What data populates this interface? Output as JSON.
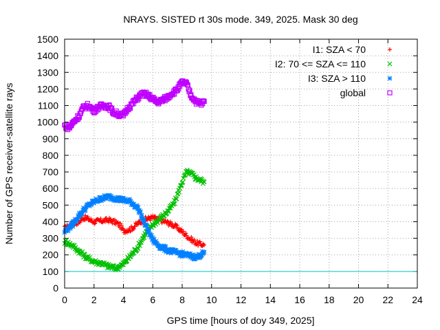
{
  "chart_data": {
    "type": "scatter",
    "title": "NRAYS. SISTED rt 30s mode. 349, 2025. Mask 30 deg",
    "xlabel": "GPS time [hours of doy 349, 2025]",
    "ylabel": "Number of GPS receiver-satellite rays",
    "xlim": [
      0,
      24
    ],
    "ylim": [
      0,
      1500
    ],
    "x_ticks": [
      "0",
      "2",
      "4",
      "6",
      "8",
      "10",
      "12",
      "14",
      "16",
      "18",
      "20",
      "22",
      "24"
    ],
    "y_ticks": [
      "0",
      "100",
      "200",
      "300",
      "400",
      "500",
      "600",
      "700",
      "800",
      "900",
      "1000",
      "1100",
      "1200",
      "1300",
      "1400",
      "1500"
    ],
    "grid": true,
    "legend_position": "top-right",
    "threshold_line": {
      "y": 100,
      "color": "#00c8c8"
    },
    "series": [
      {
        "name": "I1: SZA < 70",
        "marker": "plus",
        "color": "#ff0000",
        "x": [
          0,
          0.5,
          1,
          1.3,
          1.5,
          2,
          2.5,
          3,
          3.5,
          3.8,
          4,
          4.5,
          5,
          5.5,
          6,
          6.5,
          7,
          7.5,
          8,
          8.5,
          9,
          9.5
        ],
        "y": [
          360,
          385,
          400,
          425,
          420,
          400,
          405,
          410,
          395,
          375,
          345,
          355,
          390,
          415,
          425,
          410,
          395,
          375,
          340,
          300,
          270,
          260
        ]
      },
      {
        "name": "I2: 70 <= SZA <= 110",
        "marker": "cross",
        "color": "#00c000",
        "x": [
          0,
          0.5,
          1,
          1.5,
          2,
          2.5,
          3,
          3.5,
          4,
          4.5,
          5,
          5.5,
          6,
          6.5,
          7,
          7.5,
          8,
          8.3,
          8.6,
          9,
          9.5
        ],
        "y": [
          280,
          260,
          220,
          185,
          160,
          150,
          130,
          120,
          145,
          195,
          250,
          330,
          380,
          420,
          460,
          520,
          640,
          700,
          690,
          660,
          640
        ]
      },
      {
        "name": "I3: SZA > 110",
        "marker": "star",
        "color": "#0080ff",
        "x": [
          0,
          0.5,
          1,
          1.5,
          2,
          2.5,
          3,
          3.5,
          4,
          4.5,
          5,
          5.5,
          6,
          6.5,
          7,
          7.5,
          8,
          8.5,
          9,
          9.5
        ],
        "y": [
          340,
          380,
          440,
          490,
          520,
          540,
          550,
          540,
          530,
          520,
          480,
          380,
          290,
          250,
          230,
          215,
          205,
          195,
          185,
          215
        ]
      },
      {
        "name": "global",
        "marker": "square",
        "color": "#c000ff",
        "x": [
          0,
          0.3,
          0.6,
          1,
          1.3,
          1.6,
          2,
          2.3,
          2.6,
          3,
          3.3,
          3.6,
          4,
          4.3,
          4.6,
          5,
          5.3,
          5.6,
          6,
          6.3,
          6.6,
          7,
          7.3,
          7.6,
          8,
          8.3,
          8.6,
          9,
          9.3,
          9.5
        ],
        "y": [
          980,
          965,
          1000,
          1040,
          1090,
          1100,
          1070,
          1090,
          1100,
          1095,
          1060,
          1050,
          1040,
          1085,
          1110,
          1150,
          1170,
          1165,
          1140,
          1120,
          1130,
          1150,
          1175,
          1190,
          1240,
          1230,
          1160,
          1120,
          1110,
          1125
        ]
      }
    ]
  }
}
